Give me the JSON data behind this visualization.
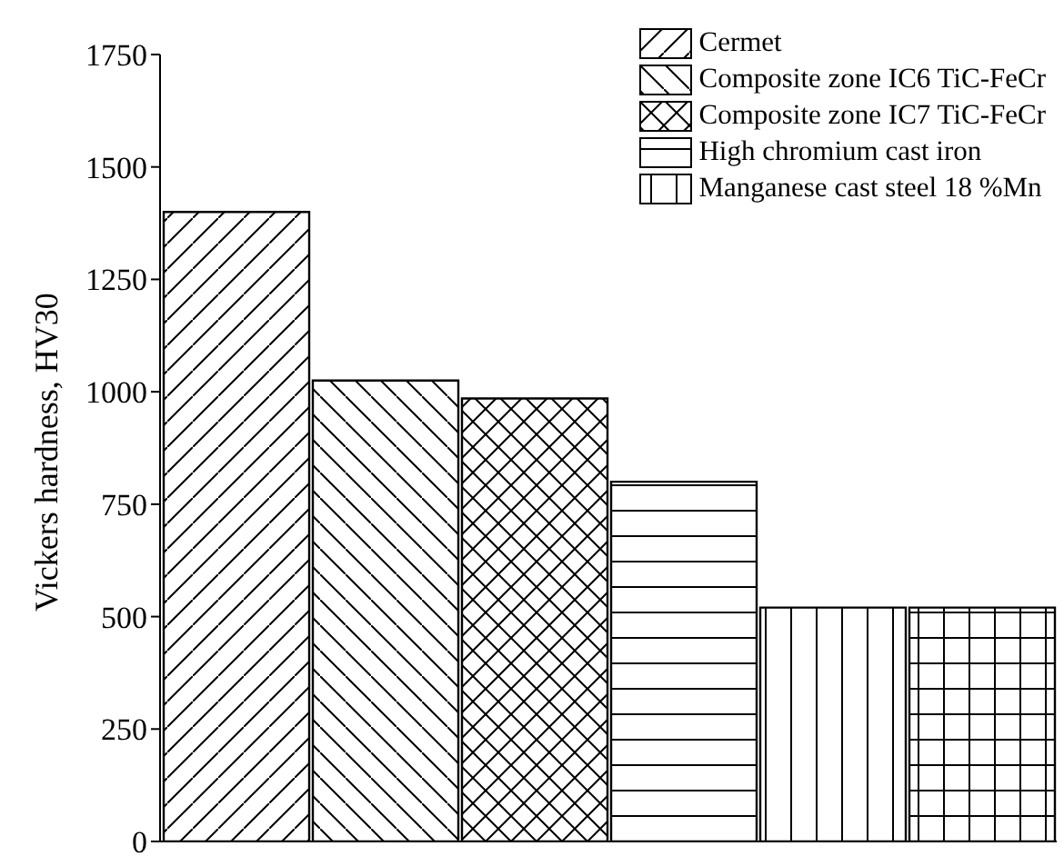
{
  "chart_data": {
    "type": "bar",
    "ylabel": "Vickers hardness, HV30",
    "categories": [
      null
    ],
    "series": [
      {
        "name": "Cermet",
        "color": "#000000",
        "values": [
          1400
        ]
      },
      {
        "name": "Composite zone IC6 TiC-FeCr",
        "color": "#000000",
        "values": [
          1025
        ]
      },
      {
        "name": "Composite zone IC7 TiC-FeCr",
        "color": "#000000",
        "values": [
          985
        ]
      },
      {
        "name": "High chromium cast iron",
        "color": "#000000",
        "values": [
          800
        ]
      },
      {
        "name": "Manganese cast steel 18 %Mn",
        "color": "#000000",
        "values": [
          520
        ]
      },
      {
        "color": "#000000",
        "values": [
          520
        ]
      }
    ],
    "ylim": [
      0,
      1750
    ],
    "yticks": [
      0,
      250,
      500,
      750,
      1000,
      1250,
      1500,
      1750
    ],
    "legend": "top right",
    "grid": false,
    "tick_labels": "y"
  }
}
